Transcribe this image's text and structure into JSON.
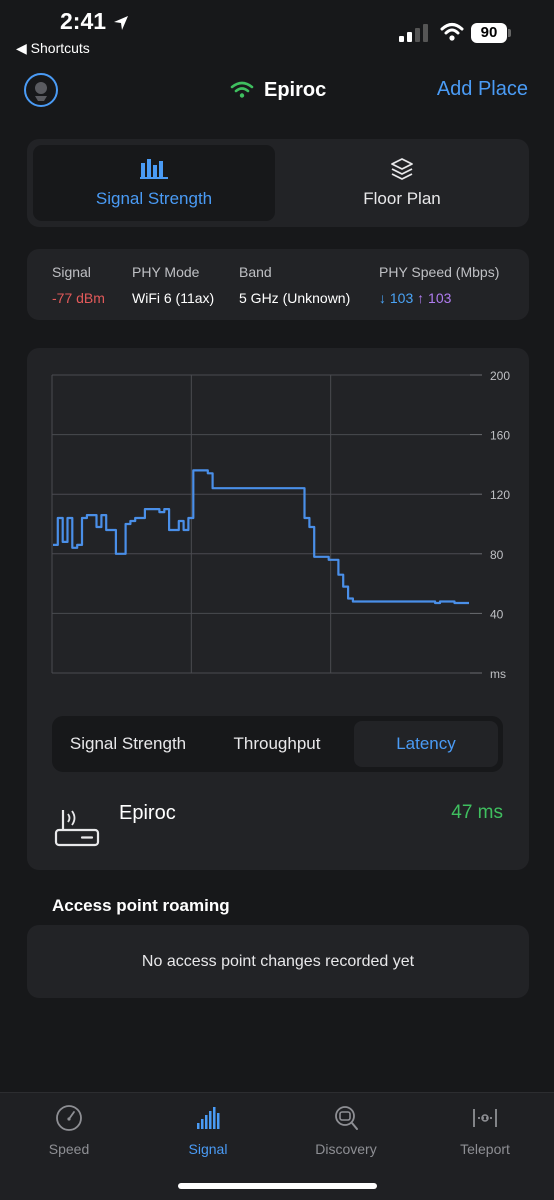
{
  "status_bar": {
    "time": "2:41",
    "back_label": "◀ Shortcuts",
    "battery": "90"
  },
  "header": {
    "network_name": "Epiroc",
    "add_place": "Add Place"
  },
  "view_toggle": {
    "options": [
      "Signal Strength",
      "Floor Plan"
    ],
    "selected": "Signal Strength"
  },
  "info": {
    "signal": {
      "label": "Signal",
      "value": "-77 dBm"
    },
    "phy_mode": {
      "label": "PHY Mode",
      "value": "WiFi 6 (11ax)"
    },
    "band": {
      "label": "Band",
      "value": "5 GHz (Unknown)"
    },
    "phy_speed": {
      "label": "PHY Speed (Mbps)",
      "down": "↓ 103",
      "up": "↑ 103"
    }
  },
  "chart_data": {
    "type": "line",
    "y_ticks": [
      "200",
      "160",
      "120",
      "80",
      "40",
      "ms"
    ],
    "ylim": [
      0,
      200
    ],
    "grid": true,
    "series": [
      {
        "color": "#4a8fe8",
        "values": [
          86,
          104,
          88,
          104,
          84,
          86,
          104,
          106,
          106,
          98,
          106,
          96,
          96,
          80,
          80,
          100,
          102,
          104,
          104,
          110,
          110,
          110,
          108,
          110,
          96,
          96,
          102,
          96,
          104,
          136,
          136,
          136,
          134,
          124,
          124,
          124,
          124,
          124,
          124,
          124,
          124,
          124,
          124,
          124,
          124,
          124,
          124,
          124,
          124,
          124,
          124,
          124,
          104,
          98,
          78,
          78,
          78,
          76,
          76,
          66,
          58,
          50,
          48,
          48,
          48,
          48,
          48,
          48,
          48,
          48,
          48,
          48,
          48,
          48,
          48,
          48,
          48,
          48,
          48,
          47,
          48,
          48,
          48,
          47,
          47,
          47,
          47
        ]
      }
    ]
  },
  "metric_toggle": {
    "options": [
      "Signal Strength",
      "Throughput",
      "Latency"
    ],
    "selected": "Latency"
  },
  "current": {
    "name": "Epiroc",
    "value": "47 ms"
  },
  "roaming": {
    "title": "Access point roaming",
    "empty_text": "No access point changes recorded yet"
  },
  "tabbar": {
    "items": [
      {
        "label": "Speed",
        "icon": "speedometer-icon"
      },
      {
        "label": "Signal",
        "icon": "signal-bars-icon"
      },
      {
        "label": "Discovery",
        "icon": "discovery-icon"
      },
      {
        "label": "Teleport",
        "icon": "teleport-icon"
      }
    ],
    "selected": "Signal"
  },
  "colors": {
    "accent": "#4a9bf5",
    "background": "#17181a",
    "card": "#222326",
    "good": "#3fbf5f",
    "bad": "#e35a5a"
  }
}
